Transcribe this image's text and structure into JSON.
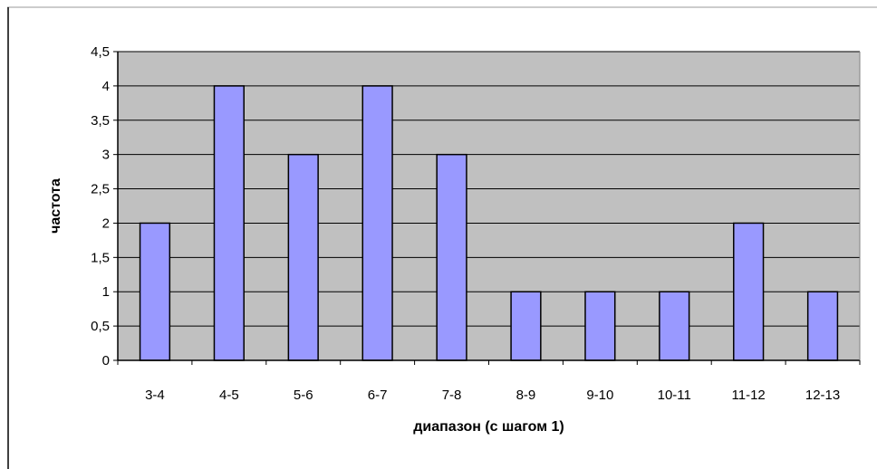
{
  "chart_data": {
    "type": "bar",
    "title": "",
    "xlabel": "диапазон (с шагом 1)",
    "ylabel": "частота",
    "categories": [
      "3-4",
      "4-5",
      "5-6",
      "6-7",
      "7-8",
      "8-9",
      "9-10",
      "10-11",
      "11-12",
      "12-13"
    ],
    "values": [
      2,
      4,
      3,
      4,
      3,
      1,
      1,
      1,
      2,
      1
    ],
    "ylim": [
      0,
      4.5
    ],
    "yticks": [
      "0",
      "0,5",
      "1",
      "1,5",
      "2",
      "2,5",
      "3",
      "3,5",
      "4",
      "4,5"
    ],
    "grid": true,
    "legend": "none",
    "colors": {
      "bar_fill": "#9999ff",
      "bar_stroke": "#000000",
      "plot_background": "#c0c0c0",
      "gridline": "#000000"
    }
  }
}
